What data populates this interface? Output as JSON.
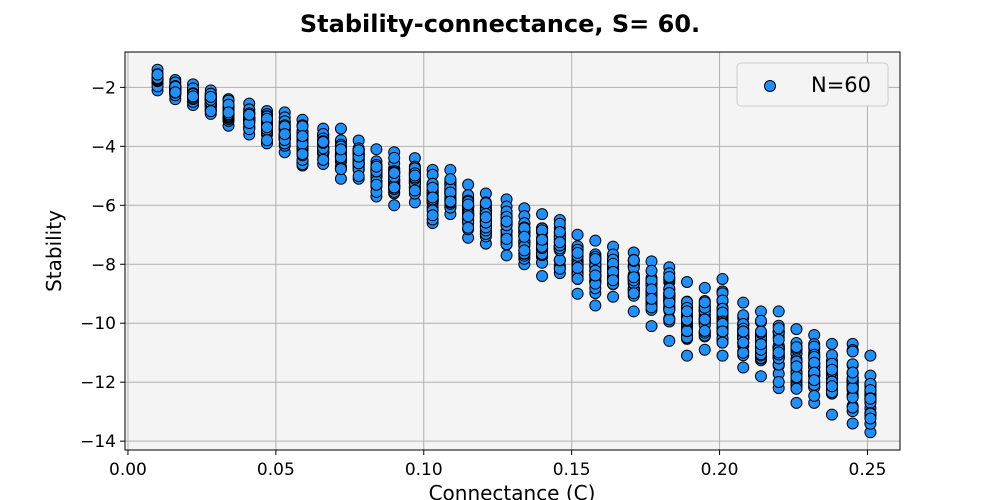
{
  "chart_data": {
    "type": "scatter",
    "title": "Stability-connectance, S= 60.",
    "xlabel": "Connectance (C)",
    "ylabel": "Stability",
    "xlim": [
      -0.001,
      0.261
    ],
    "ylim": [
      -14.3,
      -0.8
    ],
    "xticks": [
      0.0,
      0.05,
      0.1,
      0.15,
      0.2,
      0.25
    ],
    "xtick_labels": [
      "0.00",
      "0.05",
      "0.10",
      "0.15",
      "0.20",
      "0.25"
    ],
    "yticks": [
      -14,
      -12,
      -10,
      -8,
      -6,
      -4,
      -2
    ],
    "ytick_labels": [
      "−14",
      "−12",
      "−10",
      "−8",
      "−6",
      "−4",
      "−2"
    ],
    "grid": true,
    "legend_position": "top-right",
    "series": [
      {
        "name": "N=60",
        "color": "#1e90ff",
        "edge_color": "#000000",
        "columns": [
          {
            "x": 0.01,
            "y_min": -2.1,
            "y_max": -1.4
          },
          {
            "x": 0.016,
            "y_min": -2.4,
            "y_max": -1.75
          },
          {
            "x": 0.022,
            "y_min": -2.6,
            "y_max": -1.9
          },
          {
            "x": 0.028,
            "y_min": -2.9,
            "y_max": -2.1
          },
          {
            "x": 0.034,
            "y_min": -3.3,
            "y_max": -2.4
          },
          {
            "x": 0.041,
            "y_min": -3.6,
            "y_max": -2.55
          },
          {
            "x": 0.047,
            "y_min": -3.9,
            "y_max": -2.8
          },
          {
            "x": 0.053,
            "y_min": -4.2,
            "y_max": -2.85
          },
          {
            "x": 0.059,
            "y_min": -4.65,
            "y_max": -3.1
          },
          {
            "x": 0.066,
            "y_min": -4.6,
            "y_max": -3.4
          },
          {
            "x": 0.072,
            "y_min": -5.1,
            "y_max": -3.4
          },
          {
            "x": 0.078,
            "y_min": -5.1,
            "y_max": -3.8
          },
          {
            "x": 0.084,
            "y_min": -5.7,
            "y_max": -4.1
          },
          {
            "x": 0.09,
            "y_min": -6.0,
            "y_max": -4.2
          },
          {
            "x": 0.097,
            "y_min": -5.9,
            "y_max": -4.4
          },
          {
            "x": 0.103,
            "y_min": -6.6,
            "y_max": -4.8
          },
          {
            "x": 0.109,
            "y_min": -6.3,
            "y_max": -4.8
          },
          {
            "x": 0.115,
            "y_min": -7.1,
            "y_max": -5.3
          },
          {
            "x": 0.121,
            "y_min": -7.3,
            "y_max": -5.6
          },
          {
            "x": 0.128,
            "y_min": -7.7,
            "y_max": -5.8
          },
          {
            "x": 0.134,
            "y_min": -8.0,
            "y_max": -6.1
          },
          {
            "x": 0.14,
            "y_min": -8.4,
            "y_max": -6.3
          },
          {
            "x": 0.146,
            "y_min": -8.3,
            "y_max": -6.5
          },
          {
            "x": 0.152,
            "y_min": -9.0,
            "y_max": -7.0
          },
          {
            "x": 0.158,
            "y_min": -9.4,
            "y_max": -7.2
          },
          {
            "x": 0.164,
            "y_min": -9.1,
            "y_max": -7.4
          },
          {
            "x": 0.171,
            "y_min": -9.6,
            "y_max": -7.6
          },
          {
            "x": 0.177,
            "y_min": -10.1,
            "y_max": -7.9
          },
          {
            "x": 0.183,
            "y_min": -10.6,
            "y_max": -8.1
          },
          {
            "x": 0.189,
            "y_min": -11.1,
            "y_max": -8.6
          },
          {
            "x": 0.195,
            "y_min": -10.9,
            "y_max": -8.8
          },
          {
            "x": 0.201,
            "y_min": -11.1,
            "y_max": -8.5
          },
          {
            "x": 0.208,
            "y_min": -11.5,
            "y_max": -9.3
          },
          {
            "x": 0.214,
            "y_min": -11.8,
            "y_max": -9.6
          },
          {
            "x": 0.22,
            "y_min": -12.2,
            "y_max": -9.6
          },
          {
            "x": 0.226,
            "y_min": -12.7,
            "y_max": -10.2
          },
          {
            "x": 0.232,
            "y_min": -12.7,
            "y_max": -10.4
          },
          {
            "x": 0.238,
            "y_min": -13.1,
            "y_max": -10.7
          },
          {
            "x": 0.245,
            "y_min": -13.4,
            "y_max": -10.7
          },
          {
            "x": 0.251,
            "y_min": -13.7,
            "y_max": -11.1
          }
        ]
      }
    ]
  }
}
